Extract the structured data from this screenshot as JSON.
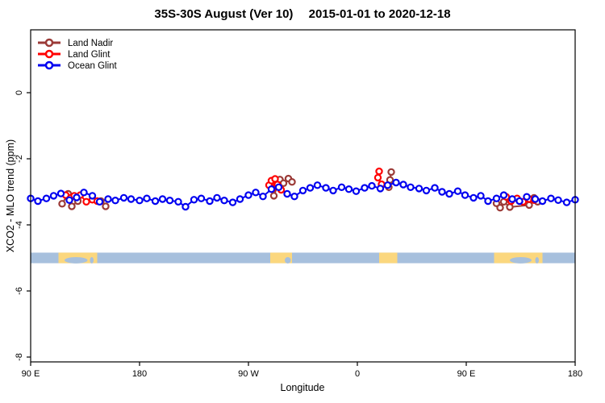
{
  "chart_data": {
    "type": "line",
    "title": "35S-30S August (Ver 10)  2015-01-01 to 2020-12-18",
    "xlabel": "Longitude",
    "ylabel": "XCO2 - MLO trend (ppm)",
    "x_axis": {
      "range_lon": [
        90,
        540
      ],
      "ticks": [
        {
          "lon": 90,
          "label": "90 E"
        },
        {
          "lon": 180,
          "label": "180"
        },
        {
          "lon": 270,
          "label": "90 W"
        },
        {
          "lon": 360,
          "label": "0"
        },
        {
          "lon": 450,
          "label": "90 E"
        },
        {
          "lon": 540,
          "label": "180"
        }
      ]
    },
    "y_axis": {
      "range": [
        -8.15,
        1.9
      ],
      "ticks": [
        {
          "ppm": 0,
          "label": "0"
        },
        {
          "ppm": -2,
          "label": "-2"
        },
        {
          "ppm": -4,
          "label": "-4"
        },
        {
          "ppm": -6,
          "label": "-6"
        },
        {
          "ppm": -8,
          "label": "-8"
        }
      ]
    },
    "colors": {
      "land_nadir": "#9b3a37",
      "land_glint": "#ff0000",
      "ocean_glint": "#0000f0",
      "strip_ocean": "#a7c0dd",
      "strip_land": "#fbd77e"
    },
    "legend": [
      {
        "key": "land_nadir",
        "label": "Land Nadir"
      },
      {
        "key": "land_glint",
        "label": "Land Glint"
      },
      {
        "key": "ocean_glint",
        "label": "Ocean Glint"
      }
    ],
    "series": [
      {
        "name": "Land Nadir",
        "key": "land_nadir",
        "clusters": [
          [
            [
              116,
              -3.36
            ],
            [
              121,
              -3.06
            ],
            [
              124,
              -3.44
            ],
            [
              129,
              -3.28
            ]
          ],
          [
            [
              148,
              -3.28
            ],
            [
              152,
              -3.44
            ]
          ],
          [
            [
              291,
              -3.12
            ],
            [
              296,
              -2.63
            ],
            [
              299,
              -2.74
            ],
            [
              303,
              -2.6
            ],
            [
              306,
              -2.7
            ]
          ],
          [
            [
              388,
              -2.4
            ],
            [
              387,
              -2.64
            ],
            [
              386,
              -2.86
            ]
          ],
          [
            [
              475,
              -3.35
            ],
            [
              478,
              -3.48
            ],
            [
              481,
              -3.3
            ],
            [
              486,
              -3.46
            ],
            [
              502,
              -3.4
            ],
            [
              506,
              -3.18
            ],
            [
              509,
              -3.3
            ]
          ]
        ]
      },
      {
        "name": "Land Glint",
        "key": "land_glint",
        "clusters": [
          [
            [
              119,
              -3.1
            ],
            [
              123,
              -3.18
            ],
            [
              126,
              -3.12
            ],
            [
              131,
              -3.1
            ],
            [
              136,
              -3.3
            ],
            [
              141,
              -3.24
            ],
            [
              145,
              -3.28
            ]
          ],
          [
            [
              287,
              -2.8
            ],
            [
              289,
              -2.66
            ],
            [
              292,
              -2.61
            ],
            [
              290,
              -2.9
            ],
            [
              294,
              -2.78
            ],
            [
              297,
              -2.94
            ]
          ],
          [
            [
              378,
              -2.38
            ],
            [
              377,
              -2.57
            ],
            [
              380,
              -2.77
            ]
          ],
          [
            [
              483,
              -3.15
            ],
            [
              487,
              -3.28
            ],
            [
              492,
              -3.2
            ],
            [
              497,
              -3.3
            ],
            [
              502,
              -3.22
            ],
            [
              506,
              -3.25
            ]
          ]
        ]
      },
      {
        "name": "Ocean Glint",
        "key": "ocean_glint",
        "clusters": [
          [
            [
              90,
              -3.2
            ],
            [
              96,
              -3.28
            ],
            [
              103,
              -3.2
            ],
            [
              109,
              -3.12
            ],
            [
              115,
              -3.05
            ],
            [
              122,
              -3.25
            ],
            [
              128,
              -3.17
            ],
            [
              134,
              -3.02
            ],
            [
              141,
              -3.12
            ],
            [
              147,
              -3.3
            ],
            [
              154,
              -3.22
            ],
            [
              160,
              -3.26
            ],
            [
              167,
              -3.18
            ],
            [
              173,
              -3.22
            ],
            [
              180,
              -3.26
            ],
            [
              186,
              -3.2
            ],
            [
              193,
              -3.28
            ],
            [
              199,
              -3.22
            ],
            [
              205,
              -3.26
            ],
            [
              212,
              -3.3
            ],
            [
              218,
              -3.45
            ],
            [
              225,
              -3.24
            ],
            [
              231,
              -3.2
            ],
            [
              238,
              -3.28
            ],
            [
              244,
              -3.18
            ],
            [
              250,
              -3.26
            ],
            [
              257,
              -3.32
            ],
            [
              263,
              -3.22
            ],
            [
              270,
              -3.1
            ],
            [
              276,
              -3.02
            ],
            [
              282,
              -3.14
            ],
            [
              289,
              -2.92
            ],
            [
              295,
              -2.86
            ],
            [
              302,
              -3.06
            ],
            [
              308,
              -3.14
            ],
            [
              315,
              -2.96
            ],
            [
              321,
              -2.88
            ],
            [
              327,
              -2.8
            ],
            [
              334,
              -2.88
            ],
            [
              340,
              -2.96
            ],
            [
              347,
              -2.86
            ],
            [
              353,
              -2.92
            ],
            [
              359,
              -2.98
            ],
            [
              366,
              -2.88
            ],
            [
              372,
              -2.82
            ],
            [
              379,
              -2.9
            ],
            [
              385,
              -2.8
            ],
            [
              392,
              -2.72
            ],
            [
              398,
              -2.78
            ],
            [
              404,
              -2.86
            ],
            [
              411,
              -2.9
            ],
            [
              417,
              -2.96
            ],
            [
              424,
              -2.88
            ],
            [
              430,
              -3.0
            ],
            [
              436,
              -3.06
            ],
            [
              443,
              -2.98
            ],
            [
              449,
              -3.1
            ],
            [
              456,
              -3.18
            ],
            [
              462,
              -3.12
            ],
            [
              468,
              -3.28
            ],
            [
              475,
              -3.2
            ],
            [
              481,
              -3.1
            ],
            [
              488,
              -3.22
            ],
            [
              494,
              -3.28
            ],
            [
              500,
              -3.15
            ],
            [
              507,
              -3.22
            ],
            [
              513,
              -3.28
            ],
            [
              520,
              -3.2
            ],
            [
              526,
              -3.25
            ],
            [
              533,
              -3.32
            ],
            [
              540,
              -3.24
            ]
          ]
        ]
      }
    ],
    "land_ocean_strip": {
      "ppm_top": -4.84,
      "ppm_bottom": -5.16,
      "land_patches": [
        {
          "from": 113,
          "to": 145,
          "lakes": [
            [
              118,
              137
            ],
            [
              139,
              142
            ]
          ]
        },
        {
          "from": 288,
          "to": 306,
          "lakes": [
            [
              300,
              305
            ]
          ]
        },
        {
          "from": 378,
          "to": 393,
          "lakes": []
        },
        {
          "from": 473,
          "to": 513,
          "lakes": [
            [
              486,
              504
            ],
            [
              507,
              510
            ]
          ]
        }
      ]
    }
  }
}
